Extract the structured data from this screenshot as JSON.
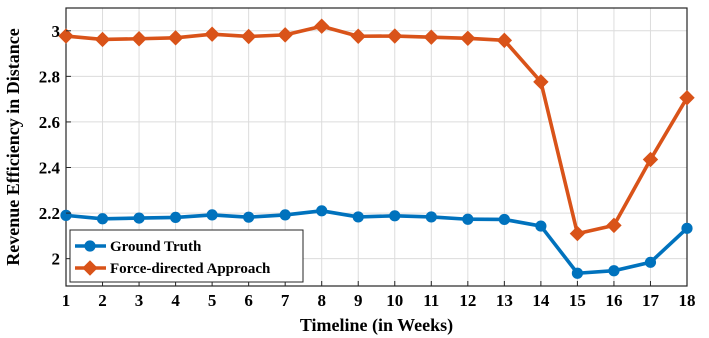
{
  "chart_data": {
    "type": "line",
    "xlabel": "Timeline (in Weeks)",
    "ylabel": "Revenue Efficiency in Distance",
    "x": [
      1,
      2,
      3,
      4,
      5,
      6,
      7,
      8,
      9,
      10,
      11,
      12,
      13,
      14,
      15,
      16,
      17,
      18
    ],
    "xlim": [
      1,
      18
    ],
    "ylim": [
      1.88,
      3.1
    ],
    "yticks": [
      2,
      2.2,
      2.4,
      2.6,
      2.8,
      3
    ],
    "ytick_labels": [
      "2",
      "2.2",
      "2.4",
      "2.6",
      "2.8",
      "3"
    ],
    "grid": true,
    "legend_position": "bottom-left",
    "series": [
      {
        "name": "Ground Truth",
        "color": "#0072BD",
        "marker": "circle",
        "values": [
          2.19,
          2.175,
          2.178,
          2.181,
          2.192,
          2.182,
          2.192,
          2.21,
          2.183,
          2.188,
          2.183,
          2.173,
          2.172,
          2.143,
          1.936,
          1.947,
          1.984,
          2.133
        ]
      },
      {
        "name": "Force-directed Approach",
        "color": "#D95319",
        "marker": "diamond",
        "values": [
          2.977,
          2.962,
          2.965,
          2.969,
          2.985,
          2.975,
          2.982,
          3.02,
          2.976,
          2.977,
          2.972,
          2.967,
          2.958,
          2.776,
          2.11,
          2.146,
          2.435,
          2.706
        ]
      }
    ]
  }
}
